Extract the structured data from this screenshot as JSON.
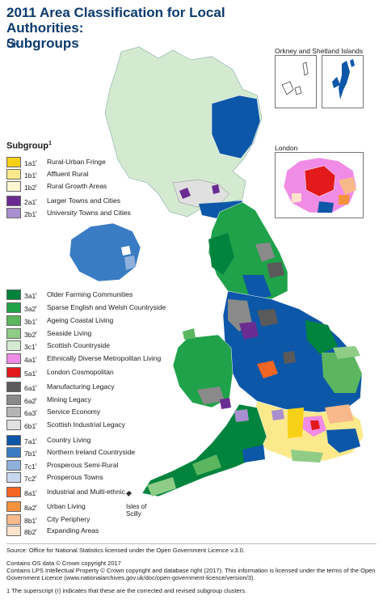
{
  "title": "2011 Area Classification for Local Authorities: Subgroups",
  "title_line1": "2011 Area Classification for Local Authorities:",
  "title_line2": "Subgroups",
  "subtitle": "UK",
  "legend_title": "Subgroup",
  "legend_title_sup": "1",
  "legend": [
    {
      "code": "1a1",
      "sup": "r",
      "label": "Rural-Urban Fringe",
      "color": "#f7d117"
    },
    {
      "code": "1b1",
      "sup": "r",
      "label": "Affluent Rural",
      "color": "#fbe98c"
    },
    {
      "code": "1b2",
      "sup": "r",
      "label": "Rural Growth Areas",
      "color": "#fdf6d3"
    },
    {
      "code": "2a1",
      "sup": "r",
      "label": "Larger Towns and Cities",
      "color": "#6a2c91"
    },
    {
      "code": "2b1",
      "sup": "r",
      "label": "University Towns and Cities",
      "color": "#a98fcf"
    },
    {
      "code": "3a1",
      "sup": "r",
      "label": "Older Farming Communities",
      "color": "#00843d"
    },
    {
      "code": "3a2",
      "sup": "r",
      "label": "Sparse English and Welsh Countryside",
      "color": "#1fa24a"
    },
    {
      "code": "3b1",
      "sup": "r",
      "label": "Ageing Coastal Living",
      "color": "#5bb65f"
    },
    {
      "code": "3b2",
      "sup": "r",
      "label": "Seaside Living",
      "color": "#8fcc86"
    },
    {
      "code": "3c1",
      "sup": "r",
      "label": "Scottish Countryside",
      "color": "#d3ead0"
    },
    {
      "code": "4a1",
      "sup": "r",
      "label": "Ethnically Diverse Metropolitan  Living",
      "color": "#f08ce6"
    },
    {
      "code": "5a1",
      "sup": "r",
      "label": "London Cosmopolitan",
      "color": "#e31a1c"
    },
    {
      "code": "6a1",
      "sup": "r",
      "label": "Manufacturing Legacy",
      "color": "#5a5a5a"
    },
    {
      "code": "6a2",
      "sup": "r",
      "label": "Mining Legacy",
      "color": "#8a8a8a"
    },
    {
      "code": "6a3",
      "sup": "r",
      "label": "Service Economy",
      "color": "#b5b5b5"
    },
    {
      "code": "6b1",
      "sup": "r",
      "label": "Scottish Industrial Legacy",
      "color": "#e0e0e0"
    },
    {
      "code": "7a1",
      "sup": "r",
      "label": "Country Living",
      "color": "#0d57a8"
    },
    {
      "code": "7b1",
      "sup": "r",
      "label": "Northern Ireland Countryside",
      "color": "#3a7cc4"
    },
    {
      "code": "7c1",
      "sup": "r",
      "label": "Prosperous Semi-Rural",
      "color": "#8fb0dc"
    },
    {
      "code": "7c2",
      "sup": "r",
      "label": "Prosperous Towns",
      "color": "#c9d8ef"
    },
    {
      "code": "8a1",
      "sup": "r",
      "label": "Industrial and Multi-ethnic",
      "color": "#f26522"
    },
    {
      "code": "8a2",
      "sup": "r",
      "label": "Urban Living",
      "color": "#f5923e"
    },
    {
      "code": "8b1",
      "sup": "r",
      "label": "City Periphery",
      "color": "#f8b98a"
    },
    {
      "code": "8b2",
      "sup": "r",
      "label": "Expanding Areas",
      "color": "#fde2cc"
    }
  ],
  "insets": {
    "orkney_label": "Orkney and Shetland Islands",
    "london_label": "London",
    "scilly_label_1": "Isles of",
    "scilly_label_2": "Scilly"
  },
  "footer": {
    "source": "Source: Office for National Statistics licensed under the Open Government Licence v.3.0.",
    "os_line": "Contains OS data © Crown copyright 2017",
    "lps_line": "Contains LPS Intellectual Property © Crown copyright and database right (2017). This information is licensed under the terms of the Open Government Licence (www.nationalarchives.gov.uk/doc/open-government-licence/version/3).",
    "note": "1 The superscript (r) indicates that these are the corrected and revised subgroup clusters."
  }
}
